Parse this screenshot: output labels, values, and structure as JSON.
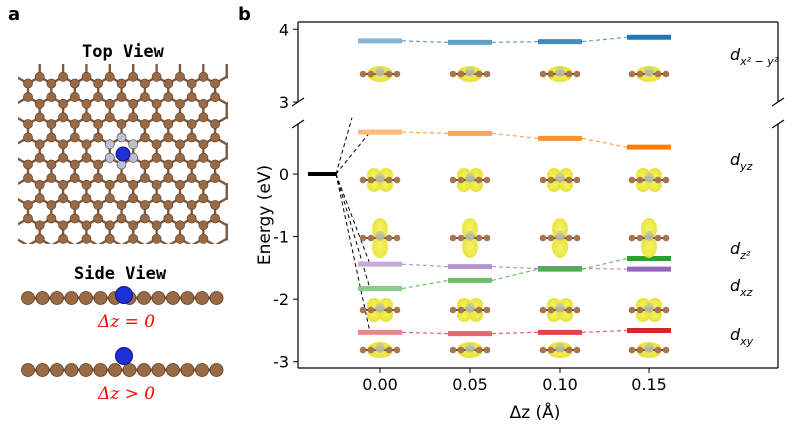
{
  "panel_a": {
    "label": "a",
    "top_view_title": "Top View",
    "side_view_title": "Side View",
    "caption_flat": "Δz = 0",
    "caption_raised": "Δz > 0",
    "colors": {
      "carbon": "#9a6a44",
      "nitrogen": "#b8bfd6",
      "metal": "#1f2fd8",
      "caption": "#ff0000"
    }
  },
  "panel_b": {
    "label": "b",
    "chart_data": {
      "type": "level diagram",
      "xlabel": "Δz (Å)",
      "ylabel": "Energy (eV)",
      "x": [
        0.0,
        0.05,
        0.1,
        0.15
      ],
      "x_tick_labels": [
        "0.00",
        "0.05",
        "0.10",
        "0.15"
      ],
      "y_ticks_lower": [
        "0",
        "-1",
        "-2",
        "-3"
      ],
      "y_ticks_upper": [
        "3",
        "4"
      ],
      "ylim_lower": [
        -3.1,
        0.8
      ],
      "ylim_upper": [
        3.0,
        4.1
      ],
      "broken_axis": true,
      "reference_level": 0.0,
      "series": [
        {
          "name": "dx²−y²",
          "color": "#1f77b4",
          "values": [
            3.84,
            3.82,
            3.83,
            3.89
          ]
        },
        {
          "name": "dyz",
          "color": "#ff7f0e",
          "values": [
            0.67,
            0.65,
            0.57,
            0.43
          ]
        },
        {
          "name": "dz²",
          "color": "#9467bd",
          "values": [
            -1.44,
            -1.48,
            -1.51,
            -1.52
          ]
        },
        {
          "name": "dxz",
          "color": "#2ca02c",
          "values": [
            -1.83,
            -1.7,
            -1.52,
            -1.35
          ]
        },
        {
          "name": "dxy",
          "color": "#d62728",
          "values": [
            -2.53,
            -2.55,
            -2.53,
            -2.5
          ]
        }
      ],
      "orbital_labels": [
        {
          "base": "d",
          "sub": "x² − y²"
        },
        {
          "base": "d",
          "sub": "yz"
        },
        {
          "base": "d",
          "sub": "z²"
        },
        {
          "base": "d",
          "sub": "xz"
        },
        {
          "base": "d",
          "sub": "xy"
        }
      ]
    }
  }
}
